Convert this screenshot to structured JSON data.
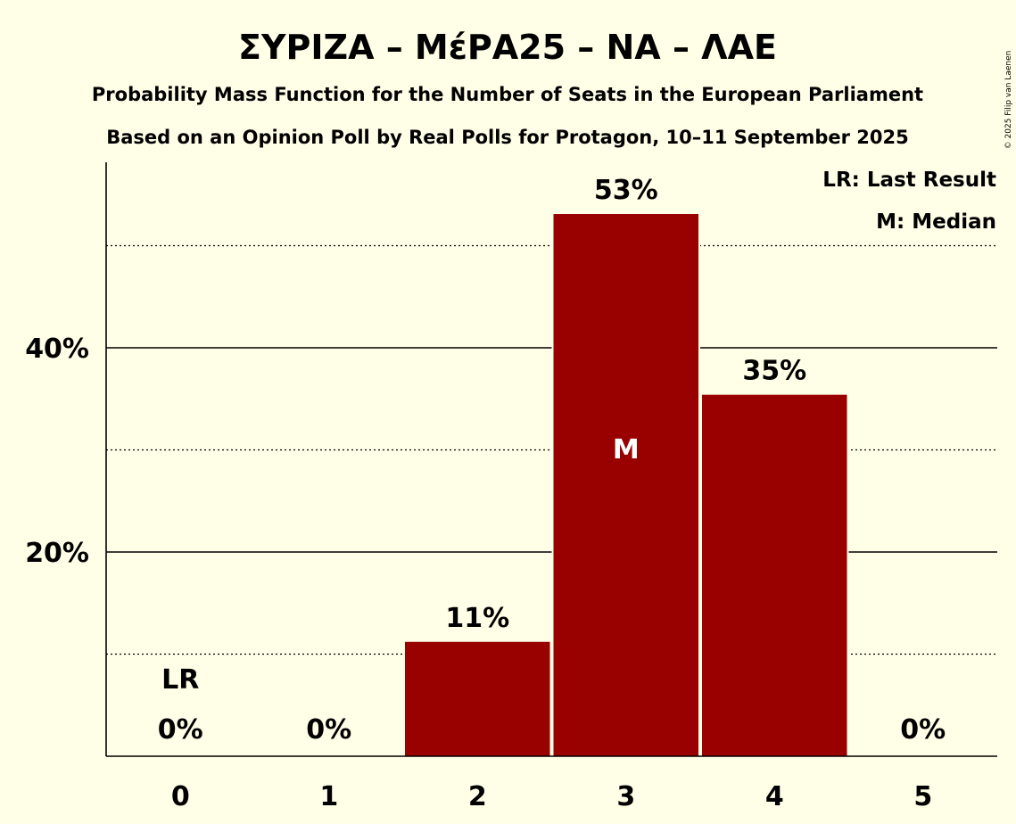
{
  "chart_data": {
    "type": "bar",
    "title": "ΣΥΡΙΖΑ – ΜέΡΑ25 – ΝΑ – ΛΑΕ",
    "subtitle": "Probability Mass Function for the Number of Seats in the European Parliament",
    "subtitle2": "Based on an Opinion Poll by Real Polls for Protagon, 10–11 September 2025",
    "categories": [
      "0",
      "1",
      "2",
      "3",
      "4",
      "5"
    ],
    "values": [
      0,
      0,
      11.2,
      53.1,
      35.4,
      0
    ],
    "value_labels": [
      "0%",
      "0%",
      "11%",
      "53%",
      "35%",
      "0%"
    ],
    "ylim": [
      0,
      58
    ],
    "yticks": [
      20,
      40
    ],
    "ytick_labels": [
      "20%",
      "40%"
    ],
    "dotted_gridlines": [
      10,
      30,
      50
    ],
    "bar_color": "#990000",
    "last_result_index": 0,
    "last_result_label": "LR",
    "median_index": 3,
    "median_label": "M",
    "legend": [
      "LR: Last Result",
      "M: Median"
    ],
    "legend_position": "top-right",
    "copyright": "© 2025 Filip van Laenen"
  }
}
